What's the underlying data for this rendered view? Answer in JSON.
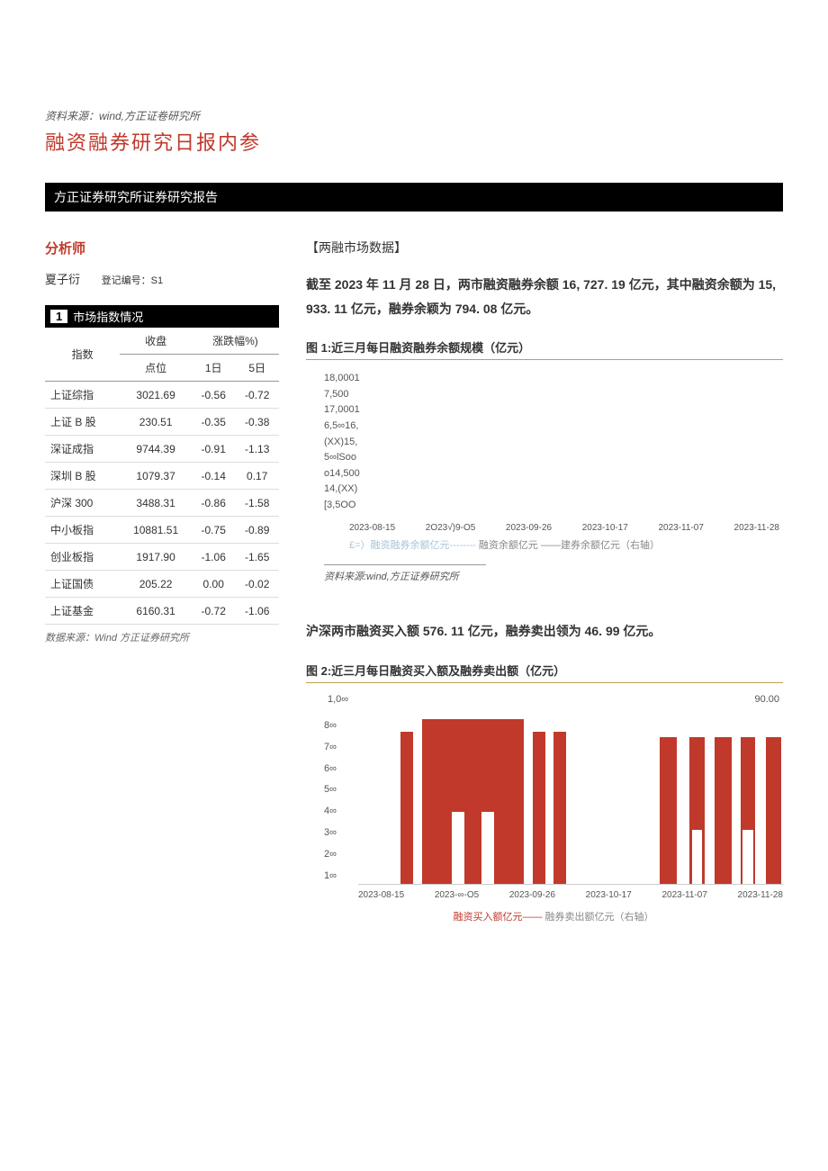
{
  "source_note_top": "资料来源：wind,方正证卷研究所",
  "main_title": "融资融券研究日报内参",
  "black_bar": "方正证券研究所证券研究报告",
  "analyst": {
    "heading": "分析师",
    "name": "夏子衍",
    "reg_label": "登记编号：S1"
  },
  "index_table": {
    "title_num": "1",
    "title_text": "市场指数情况",
    "header": {
      "c1": "指数",
      "c2_top": "收盘",
      "c2_bottom": "点位",
      "c3_top": "涨跌幅%)",
      "c3a": "1日",
      "c3b": "5日"
    },
    "rows": [
      {
        "name": "上证综指",
        "close": "3021.69",
        "d1": "-0.56",
        "d5": "-0.72"
      },
      {
        "name": "上证 B 股",
        "close": "230.51",
        "d1": "-0.35",
        "d5": "-0.38"
      },
      {
        "name": "深证成指",
        "close": "9744.39",
        "d1": "-0.91",
        "d5": "-1.13"
      },
      {
        "name": "深圳 B 股",
        "close": "1079.37",
        "d1": "-0.14",
        "d5": "0.17"
      },
      {
        "name": "沪深 300",
        "close": "3488.31",
        "d1": "-0.86",
        "d5": "-1.58"
      },
      {
        "name": "中小板指",
        "close": "10881.51",
        "d1": "-0.75",
        "d5": "-0.89"
      },
      {
        "name": "创业板指",
        "close": "1917.90",
        "d1": "-1.06",
        "d5": "-1.65"
      },
      {
        "name": "上证国债",
        "close": "205.22",
        "d1": "0.00",
        "d5": "-0.02"
      },
      {
        "name": "上证基金",
        "close": "6160.31",
        "d1": "-0.72",
        "d5": "-1.06"
      }
    ],
    "source": "数据来源：Wind 方正证券研究所"
  },
  "right": {
    "section_heading": "【两融市场数据】",
    "para1": "截至 2023 年 11 月 28 日，两市融资融券余额 16, 727. 19 亿元，其中融资余额为 15, 933. 11 亿元，融券余颖为 794. 08 亿元。",
    "chart1": {
      "title": "图 1:近三月每日融资融券余额规模（亿元）",
      "y_labels": [
        "18,0001",
        "7,500",
        "17,0001",
        "6,5∞16,",
        "(XX)15,",
        "5∞lSoo",
        "o14,500",
        "14,(XX)",
        "[3,5OO"
      ],
      "x_labels": [
        "2023-08-15",
        "2O23√)9-O5",
        "2023-09-26",
        "2023-10-17",
        "2023-11-07",
        "2023-11-28"
      ],
      "legend_s1": "£=）融资融券余额亿元--------",
      "legend_s2": "融资余额亿元",
      "legend_s3": "——建券余额亿元（右轴）",
      "source": "资料来源:wind,方正证券研究所"
    },
    "para2": "沪深两市融资买入额 576. 11 亿元，融券卖出领为 46. 99 亿元。",
    "chart2": {
      "title": "图 2:近三月每日融资买入额及融券卖出额（亿元）",
      "top_left": "1,0∞",
      "top_right": "90.00",
      "y_labels": [
        "8∞",
        "7∞",
        "6∞",
        "5∞",
        "4∞",
        "3∞",
        "2∞",
        "1∞"
      ],
      "x_labels": [
        "2023-08-15",
        "2023-∞-O5",
        "2023-09-26",
        "2023-10-17",
        "2023-11-07",
        "2023-11-28"
      ],
      "legend_r": "融资买入额亿元——",
      "legend_g": "融券卖出额亿元（右轴）",
      "shapes": [
        {
          "left_pct": 10,
          "width_pct": 3,
          "height_pct": 85
        },
        {
          "left_pct": 15,
          "width_pct": 24,
          "height_pct": 92
        },
        {
          "left_pct": 22,
          "width_pct": 3,
          "height_pct": 40,
          "bg": "#ffffff"
        },
        {
          "left_pct": 29,
          "width_pct": 3,
          "height_pct": 40,
          "bg": "#ffffff"
        },
        {
          "left_pct": 41,
          "width_pct": 3,
          "height_pct": 85
        },
        {
          "left_pct": 46,
          "width_pct": 3,
          "height_pct": 85
        },
        {
          "left_pct": 71,
          "width_pct": 4,
          "height_pct": 82
        },
        {
          "left_pct": 78,
          "width_pct": 3.5,
          "height_pct": 82
        },
        {
          "left_pct": 78.5,
          "width_pct": 2.5,
          "height_pct": 30,
          "bg": "#ffffff"
        },
        {
          "left_pct": 84,
          "width_pct": 4,
          "height_pct": 82
        },
        {
          "left_pct": 90,
          "width_pct": 3.5,
          "height_pct": 82
        },
        {
          "left_pct": 90.5,
          "width_pct": 2.5,
          "height_pct": 30,
          "bg": "#ffffff"
        },
        {
          "left_pct": 96,
          "width_pct": 3.5,
          "height_pct": 82
        }
      ]
    }
  }
}
